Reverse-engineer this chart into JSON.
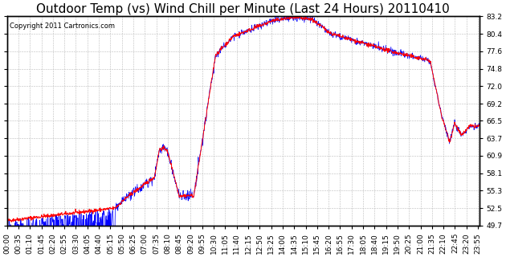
{
  "title": "Outdoor Temp (vs) Wind Chill per Minute (Last 24 Hours) 20110410",
  "copyright": "Copyright 2011 Cartronics.com",
  "background_color": "#ffffff",
  "plot_bg_color": "#ffffff",
  "grid_color": "#bbbbbb",
  "ylim": [
    49.7,
    83.2
  ],
  "yticks": [
    49.7,
    52.5,
    55.3,
    58.1,
    60.9,
    63.7,
    66.5,
    69.2,
    72.0,
    74.8,
    77.6,
    80.4,
    83.2
  ],
  "outdoor_color": "#ff0000",
  "windchill_color": "#0000ff",
  "title_fontsize": 11,
  "tick_fontsize": 6.5,
  "num_minutes": 1440,
  "xtick_interval": 35
}
